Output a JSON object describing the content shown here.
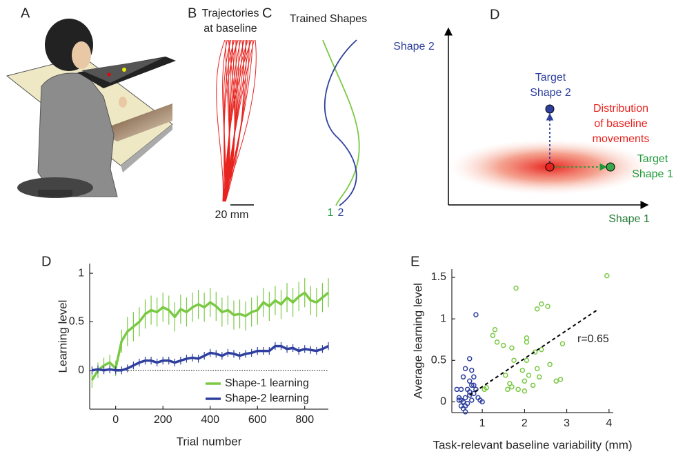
{
  "panels": {
    "a": {
      "label": "A"
    },
    "b": {
      "label": "B",
      "title": [
        "Trajectories",
        "at baseline"
      ],
      "scale": "20 mm"
    },
    "c": {
      "label": "C",
      "title": "Trained Shapes",
      "curve_labels": [
        "1",
        "2"
      ]
    },
    "d": {
      "label": "D",
      "y_axis": "Shape 2",
      "x_axis": "Shape 1",
      "target2": [
        "Target",
        "Shape 2"
      ],
      "target1": [
        "Target",
        "Shape 1"
      ],
      "distribution": [
        "Distribution",
        "of baseline",
        "movements"
      ]
    }
  },
  "chart_data": [
    {
      "type": "line",
      "panel_label": "D",
      "xlabel": "Trial number",
      "ylabel": "Learning level",
      "x": [
        -100,
        -75,
        -50,
        -25,
        0,
        25,
        50,
        75,
        100,
        125,
        150,
        175,
        200,
        225,
        250,
        275,
        300,
        325,
        350,
        375,
        400,
        425,
        450,
        475,
        500,
        525,
        550,
        575,
        600,
        625,
        650,
        675,
        700,
        725,
        750,
        775,
        800,
        825,
        850,
        875,
        900
      ],
      "series": [
        {
          "name": "Shape-1 learning",
          "color": "#7ac943",
          "values": [
            -0.1,
            0.0,
            0.05,
            0.08,
            0.02,
            0.3,
            0.4,
            0.45,
            0.5,
            0.58,
            0.62,
            0.6,
            0.65,
            0.62,
            0.55,
            0.63,
            0.6,
            0.65,
            0.68,
            0.65,
            0.7,
            0.66,
            0.6,
            0.62,
            0.57,
            0.58,
            0.56,
            0.6,
            0.62,
            0.7,
            0.66,
            0.72,
            0.68,
            0.75,
            0.7,
            0.76,
            0.8,
            0.72,
            0.7,
            0.75,
            0.8
          ],
          "errors": [
            0.08,
            0.08,
            0.08,
            0.08,
            0.08,
            0.12,
            0.15,
            0.15,
            0.15,
            0.15,
            0.15,
            0.15,
            0.15,
            0.15,
            0.15,
            0.15,
            0.15,
            0.15,
            0.15,
            0.15,
            0.15,
            0.15,
            0.15,
            0.15,
            0.15,
            0.15,
            0.15,
            0.15,
            0.15,
            0.15,
            0.15,
            0.15,
            0.15,
            0.15,
            0.15,
            0.15,
            0.15,
            0.15,
            0.15,
            0.15,
            0.15
          ]
        },
        {
          "name": "Shape-2 learning",
          "color": "#2e3f9e",
          "values": [
            0,
            0.01,
            0,
            0.01,
            0,
            0,
            0.02,
            0.05,
            0.08,
            0.1,
            0.1,
            0.08,
            0.1,
            0.1,
            0.08,
            0.1,
            0.12,
            0.13,
            0.12,
            0.15,
            0.18,
            0.17,
            0.15,
            0.18,
            0.17,
            0.15,
            0.17,
            0.18,
            0.2,
            0.2,
            0.2,
            0.25,
            0.25,
            0.22,
            0.23,
            0.2,
            0.22,
            0.21,
            0.2,
            0.22,
            0.25
          ],
          "errors": [
            0.04,
            0.04,
            0.04,
            0.04,
            0.04,
            0.04,
            0.04,
            0.04,
            0.04,
            0.04,
            0.04,
            0.04,
            0.04,
            0.04,
            0.04,
            0.04,
            0.04,
            0.04,
            0.04,
            0.04,
            0.04,
            0.04,
            0.04,
            0.04,
            0.04,
            0.04,
            0.04,
            0.04,
            0.04,
            0.04,
            0.04,
            0.04,
            0.04,
            0.04,
            0.04,
            0.04,
            0.04,
            0.04,
            0.04,
            0.04,
            0.04
          ]
        }
      ],
      "xlim": [
        -110,
        900
      ],
      "xticks": [
        0,
        200,
        400,
        600,
        800
      ],
      "ylim": [
        -0.4,
        1.1
      ],
      "yticks": [
        0,
        0.5,
        1
      ],
      "legend": "lower right"
    },
    {
      "type": "scatter",
      "panel_label": "E",
      "xlabel": "Task-relevant baseline variability (mm)",
      "ylabel": "Average learning level",
      "series": [
        {
          "color": "#7ac943",
          "x": [
            3.95,
            1.8,
            2.4,
            2.55,
            2.3,
            1.3,
            1.25,
            1.35,
            1.5,
            1.7,
            2.05,
            2.05,
            2.25,
            2.9,
            1.75,
            2.4,
            2.05,
            2.3,
            2.6,
            2.35,
            1.95,
            1.55,
            2.1,
            2.0,
            1.65,
            1.7,
            1.85,
            2.2,
            2.75,
            2.85,
            1.6,
            1.05,
            1.1,
            2.0
          ],
          "y": [
            1.52,
            1.37,
            1.18,
            1.15,
            1.12,
            0.87,
            0.8,
            0.72,
            0.68,
            0.65,
            0.77,
            0.72,
            0.6,
            0.7,
            0.5,
            0.63,
            0.5,
            0.4,
            0.45,
            0.3,
            0.38,
            0.32,
            0.32,
            0.25,
            0.22,
            0.18,
            0.15,
            0.2,
            0.25,
            0.27,
            0.15,
            0.15,
            0.17,
            0.13
          ]
        },
        {
          "color": "#2e3f9e",
          "x": [
            0.85,
            0.7,
            0.6,
            0.75,
            0.8,
            0.55,
            0.7,
            0.75,
            0.8,
            0.65,
            0.5,
            0.7,
            0.8,
            0.9,
            0.6,
            0.45,
            0.5,
            0.55,
            0.65,
            0.75,
            0.6,
            0.55,
            0.6,
            0.95,
            1.0,
            0.4,
            0.45,
            0.7,
            0.85,
            0.5
          ],
          "y": [
            1.05,
            0.52,
            0.4,
            0.38,
            0.3,
            0.3,
            0.25,
            0.2,
            0.2,
            0.15,
            0.15,
            0.12,
            0.1,
            0.05,
            0.05,
            0.05,
            0.02,
            0,
            -0.02,
            0.02,
            -0.05,
            -0.08,
            -0.12,
            0.02,
            0,
            0.15,
            0.02,
            0.08,
            0.15,
            -0.05
          ]
        }
      ],
      "trendline": {
        "x": [
          0.7,
          3.7
        ],
        "y": [
          0.08,
          1.1
        ]
      },
      "annotation": "r=0.65",
      "xlim": [
        0.28,
        4.1
      ],
      "xticks": [
        1,
        2,
        3,
        4
      ],
      "ylim": [
        -0.13,
        1.6
      ],
      "yticks": [
        0,
        0.5,
        1,
        1.5
      ]
    }
  ]
}
